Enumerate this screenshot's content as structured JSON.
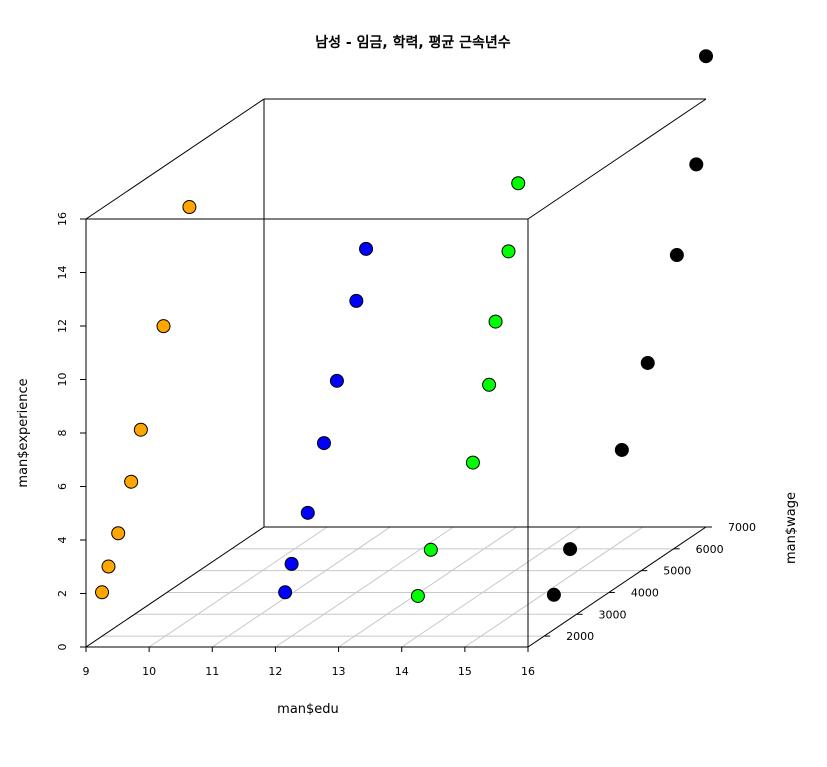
{
  "chart_data": {
    "type": "scatter",
    "projection": "3d",
    "title": "남성 - 임금, 학력, 평균 근속년수",
    "xlabel": "man$edu",
    "ylabel": "man$wage",
    "zlabel": "man$experience",
    "xlim": [
      9,
      16
    ],
    "ylim": [
      1500,
      7000
    ],
    "zlim": [
      0,
      16
    ],
    "x_ticks": [
      "9",
      "10",
      "11",
      "12",
      "13",
      "14",
      "15",
      "16"
    ],
    "y_ticks": [
      "2000",
      "3000",
      "4000",
      "5000",
      "6000",
      "7000"
    ],
    "z_ticks": [
      "0",
      "2",
      "4",
      "6",
      "8",
      "10",
      "12",
      "14",
      "16"
    ],
    "grid": true,
    "box": true,
    "series": [
      {
        "color": "#FFA500",
        "points": [
          {
            "x": 9.1,
            "y": 1800,
            "z": 1.8
          },
          {
            "x": 9.1,
            "y": 2000,
            "z": 2.6
          },
          {
            "x": 9.1,
            "y": 2300,
            "z": 3.6
          },
          {
            "x": 9.1,
            "y": 2700,
            "z": 5.2
          },
          {
            "x": 9.1,
            "y": 3000,
            "z": 6.9
          },
          {
            "x": 9.1,
            "y": 3700,
            "z": 10.2
          },
          {
            "x": 9.1,
            "y": 4500,
            "z": 14.0
          }
        ]
      },
      {
        "color": "#0000FF",
        "points": [
          {
            "x": 12.0,
            "y": 1800,
            "z": 1.8
          },
          {
            "x": 12.0,
            "y": 2000,
            "z": 2.7
          },
          {
            "x": 12.0,
            "y": 2500,
            "z": 4.2
          },
          {
            "x": 12.0,
            "y": 3000,
            "z": 6.4
          },
          {
            "x": 12.0,
            "y": 3400,
            "z": 8.4
          },
          {
            "x": 12.0,
            "y": 4000,
            "z": 10.9
          },
          {
            "x": 12.0,
            "y": 4300,
            "z": 12.6
          }
        ]
      },
      {
        "color": "#00FF00",
        "points": [
          {
            "x": 14.0,
            "y": 2000,
            "z": 1.5
          },
          {
            "x": 14.0,
            "y": 2400,
            "z": 2.9
          },
          {
            "x": 14.0,
            "y": 3700,
            "z": 5.1
          },
          {
            "x": 14.0,
            "y": 4200,
            "z": 7.6
          },
          {
            "x": 14.0,
            "y": 4400,
            "z": 9.8
          },
          {
            "x": 14.0,
            "y": 4800,
            "z": 12.1
          },
          {
            "x": 14.0,
            "y": 5100,
            "z": 14.4
          }
        ]
      },
      {
        "color": "#000000",
        "points": [
          {
            "x": 16.0,
            "y": 2300,
            "z": 1.3
          },
          {
            "x": 16.0,
            "y": 2800,
            "z": 2.6
          },
          {
            "x": 16.0,
            "y": 4400,
            "z": 5.0
          },
          {
            "x": 16.0,
            "y": 5200,
            "z": 7.6
          },
          {
            "x": 16.0,
            "y": 6100,
            "z": 10.9
          },
          {
            "x": 16.0,
            "y": 6700,
            "z": 13.8
          },
          {
            "x": 16.0,
            "y": 7000,
            "z": 17.6
          }
        ]
      }
    ]
  }
}
